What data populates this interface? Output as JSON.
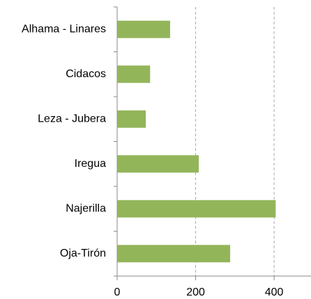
{
  "chart_data": {
    "type": "hbar",
    "categories": [
      "Alhama - Linares",
      "Cidacos",
      "Leza - Jubera",
      "Iregua",
      "Najerilla",
      "Oja-Tirón"
    ],
    "values": [
      135,
      84,
      73,
      208,
      404,
      288
    ],
    "color": "#93b55a",
    "xlim": [
      0,
      494
    ],
    "xticks": [
      0,
      200,
      400
    ],
    "grid": true
  }
}
